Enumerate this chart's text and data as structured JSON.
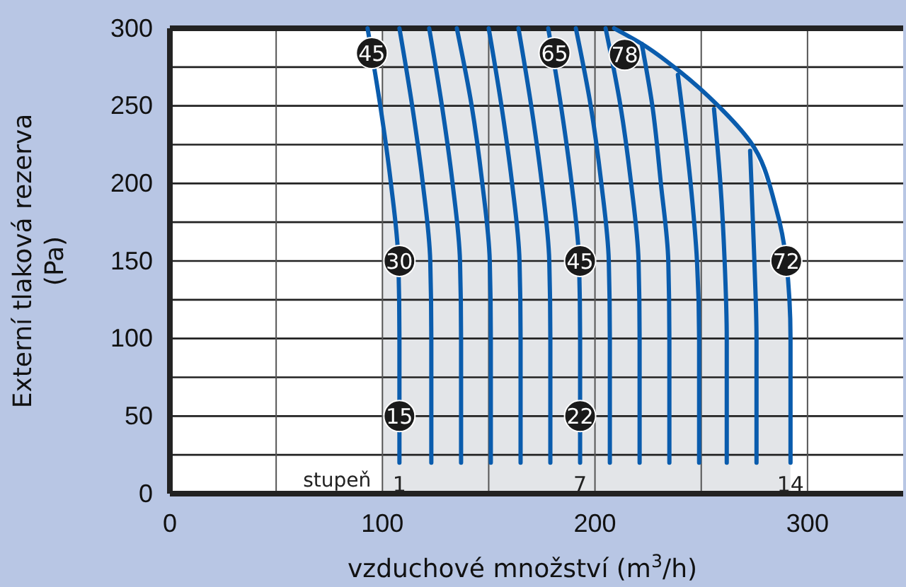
{
  "chart_data": {
    "type": "line",
    "xlabel": "vzduchové množství (m$^{3}$/h)",
    "ylabel": "Externí tlaková rezerva (Pa)",
    "xlim": [
      0,
      345
    ],
    "ylim": [
      0,
      300
    ],
    "xticks": [
      0,
      {
        "value": 50,
        "label": null
      },
      100,
      {
        "value": 150,
        "label": null
      },
      200,
      {
        "value": 250,
        "label": null
      },
      300
    ],
    "yticks": [
      0,
      {
        "value": 25,
        "label": null
      },
      50,
      {
        "value": 75,
        "label": null
      },
      100,
      {
        "value": 125,
        "label": null
      },
      150,
      {
        "value": 175,
        "label": null
      },
      200,
      {
        "value": 225,
        "label": null
      },
      250,
      {
        "value": 275,
        "label": null
      },
      300
    ],
    "grid": true,
    "bands": [
      {
        "axis": "x",
        "from": 100,
        "to": 292,
        "color": "#e3e5e8"
      }
    ],
    "series": [
      {
        "color": "#0a5cad",
        "x": [
          108,
          108,
          107.5,
          104,
          99,
          93
        ],
        "values": [
          20,
          100,
          150,
          200,
          250,
          300
        ]
      },
      {
        "color": "#0a5cad",
        "x": [
          123,
          123,
          122.5,
          119,
          114,
          108
        ],
        "values": [
          20,
          100,
          150,
          200,
          250,
          300
        ]
      },
      {
        "color": "#0a5cad",
        "x": [
          137,
          137,
          136.5,
          133,
          128,
          122
        ],
        "values": [
          20,
          100,
          150,
          200,
          250,
          300
        ]
      },
      {
        "color": "#0a5cad",
        "x": [
          151,
          151,
          150.5,
          147,
          142,
          135
        ],
        "values": [
          20,
          100,
          150,
          200,
          250,
          300
        ]
      },
      {
        "color": "#0a5cad",
        "x": [
          165,
          165,
          164.5,
          161,
          156,
          150
        ],
        "values": [
          20,
          100,
          150,
          200,
          250,
          300
        ]
      },
      {
        "color": "#0a5cad",
        "x": [
          179,
          179,
          178.5,
          175,
          170,
          164
        ],
        "values": [
          20,
          100,
          150,
          200,
          250,
          300
        ]
      },
      {
        "color": "#0a5cad",
        "x": [
          193,
          193,
          192.5,
          189,
          184,
          178
        ],
        "values": [
          20,
          100,
          150,
          200,
          250,
          300
        ]
      },
      {
        "color": "#0a5cad",
        "x": [
          207,
          207,
          206.5,
          203,
          198,
          191
        ],
        "values": [
          20,
          100,
          150,
          200,
          250,
          300
        ]
      },
      {
        "color": "#0a5cad",
        "x": [
          221,
          221,
          220.5,
          217,
          212,
          205
        ],
        "values": [
          20,
          100,
          150,
          200,
          250,
          300
        ]
      },
      {
        "color": "#0a5cad",
        "x": [
          235,
          235,
          234.5,
          231,
          227,
          222
        ],
        "values": [
          20,
          100,
          150,
          200,
          250,
          290
        ]
      },
      {
        "color": "#0a5cad",
        "x": [
          249,
          249,
          248,
          245,
          239
        ],
        "values": [
          20,
          100,
          150,
          200,
          270
        ]
      },
      {
        "color": "#0a5cad",
        "x": [
          262,
          262,
          261,
          259,
          256
        ],
        "values": [
          20,
          100,
          150,
          200,
          248
        ]
      },
      {
        "color": "#0a5cad",
        "x": [
          276,
          276,
          275,
          273
        ],
        "values": [
          20,
          100,
          150,
          221
        ]
      },
      {
        "color": "#0a5cad",
        "x": [
          292,
          292,
          290,
          285,
          273,
          258,
          240,
          222,
          209
        ],
        "values": [
          20,
          100,
          150,
          185,
          227,
          250,
          272,
          290,
          300
        ]
      }
    ],
    "annotations": [
      {
        "text": "45",
        "x": 95,
        "y": 284
      },
      {
        "text": "30",
        "x": 108,
        "y": 150
      },
      {
        "text": "15",
        "x": 108,
        "y": 50
      },
      {
        "text": "65",
        "x": 181,
        "y": 284
      },
      {
        "text": "45",
        "x": 193,
        "y": 150
      },
      {
        "text": "22",
        "x": 193,
        "y": 50
      },
      {
        "text": "78",
        "x": 214,
        "y": 283
      },
      {
        "text": "72",
        "x": 290,
        "y": 150
      },
      "stupeň",
      "1",
      "7",
      "14"
    ]
  }
}
